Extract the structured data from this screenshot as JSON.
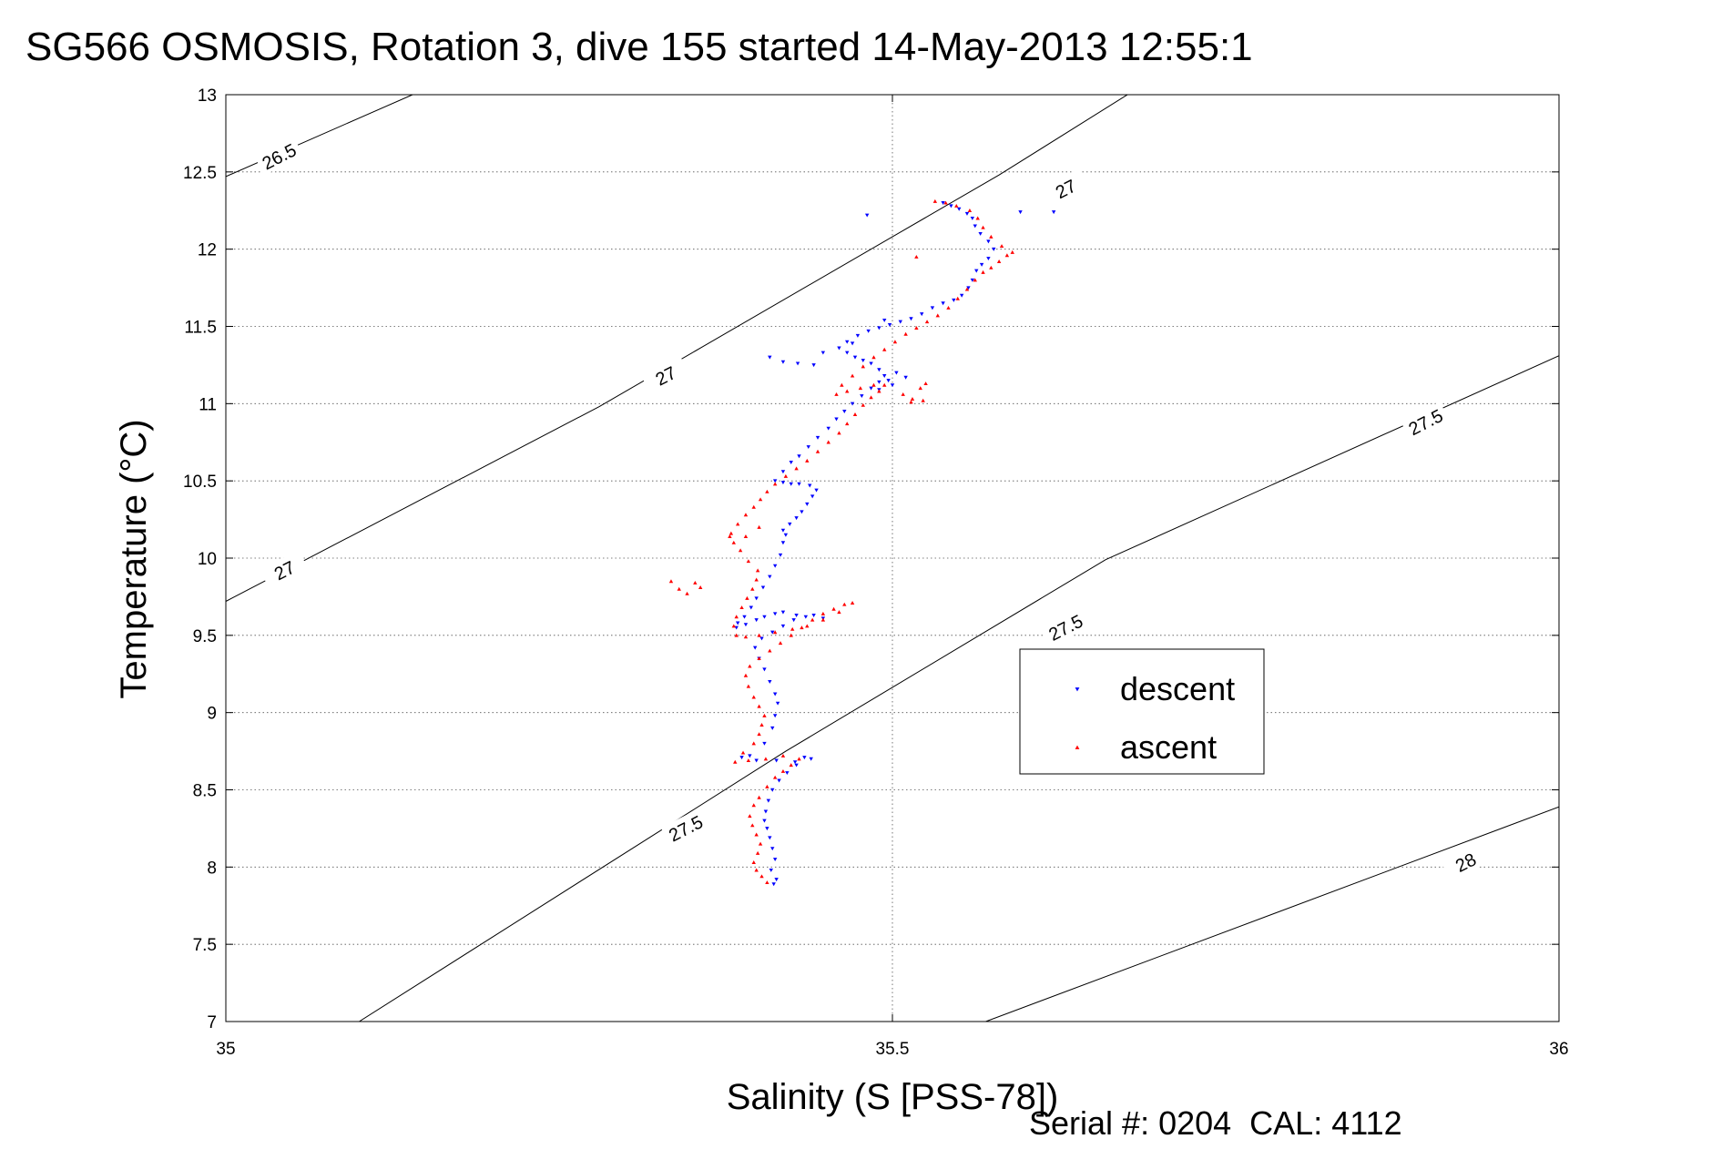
{
  "chart_data": {
    "type": "scatter",
    "title": "SG566 OSMOSIS, Rotation 3, dive 155 started 14-May-2013 12:55:1",
    "xlabel": "Salinity (S [PSS-78])",
    "ylabel": "Temperature (°C)",
    "footer": "Serial #: 0204  CAL: 4112",
    "xlim": [
      35,
      36
    ],
    "ylim": [
      7,
      13
    ],
    "xticks": [
      "35",
      "35.5",
      "36"
    ],
    "yticks": [
      "7",
      "7.5",
      "8",
      "8.5",
      "9",
      "9.5",
      "10",
      "10.5",
      "11",
      "11.5",
      "12",
      "12.5",
      "13"
    ],
    "grid": true,
    "legend_position": "right-center",
    "colors": {
      "descent": "#0000ff",
      "ascent": "#ff0000",
      "contour": "#000000"
    },
    "contours": [
      {
        "label": "26.5",
        "points": [
          [
            35.0,
            12.47
          ],
          [
            35.14,
            13.0
          ]
        ],
        "label_at": [
          35.04,
          12.6
        ]
      },
      {
        "label": "27",
        "points": [
          [
            35.0,
            9.72
          ],
          [
            35.28,
            10.98
          ],
          [
            35.58,
            12.48
          ],
          [
            35.68,
            13.02
          ]
        ],
        "label_at": [
          35.044,
          9.92
        ]
      },
      {
        "label": "27",
        "points": [],
        "label_at": [
          35.33,
          11.18
        ]
      },
      {
        "label": "27",
        "points": [],
        "label_at": [
          35.63,
          12.39
        ]
      },
      {
        "label": "27.5",
        "points": [
          [
            35.1,
            7.0
          ],
          [
            35.42,
            8.75
          ],
          [
            35.66,
            9.99
          ],
          [
            36.0,
            11.31
          ]
        ],
        "label_at": [
          35.345,
          8.25
        ]
      },
      {
        "label": "27.5",
        "points": [],
        "label_at": [
          35.63,
          9.55
        ]
      },
      {
        "label": "27.5",
        "points": [],
        "label_at": [
          35.9,
          10.88
        ]
      },
      {
        "label": "28",
        "points": [
          [
            35.57,
            7.0
          ],
          [
            36.0,
            8.39
          ]
        ],
        "label_at": [
          35.93,
          8.03
        ]
      }
    ],
    "series": [
      {
        "name": "descent",
        "marker": "triangle-down",
        "points": [
          [
            35.411,
            7.89
          ],
          [
            35.413,
            7.92
          ],
          [
            35.409,
            7.98
          ],
          [
            35.412,
            8.05
          ],
          [
            35.41,
            8.12
          ],
          [
            35.408,
            8.19
          ],
          [
            35.406,
            8.25
          ],
          [
            35.404,
            8.3
          ],
          [
            35.405,
            8.36
          ],
          [
            35.407,
            8.43
          ],
          [
            35.41,
            8.5
          ],
          [
            35.415,
            8.56
          ],
          [
            35.421,
            8.61
          ],
          [
            35.428,
            8.66
          ],
          [
            35.434,
            8.71
          ],
          [
            35.439,
            8.7
          ],
          [
            35.427,
            8.68
          ],
          [
            35.413,
            8.69
          ],
          [
            35.398,
            8.69
          ],
          [
            35.387,
            8.71
          ],
          [
            35.393,
            8.72
          ],
          [
            35.404,
            8.8
          ],
          [
            35.41,
            8.9
          ],
          [
            35.412,
            8.98
          ],
          [
            35.414,
            9.06
          ],
          [
            35.412,
            9.12
          ],
          [
            35.408,
            9.2
          ],
          [
            35.404,
            9.28
          ],
          [
            35.4,
            9.35
          ],
          [
            35.397,
            9.42
          ],
          [
            35.402,
            9.48
          ],
          [
            35.41,
            9.52
          ],
          [
            35.418,
            9.56
          ],
          [
            35.426,
            9.6
          ],
          [
            35.435,
            9.62
          ],
          [
            35.441,
            9.63
          ],
          [
            35.448,
            9.61
          ],
          [
            35.428,
            9.63
          ],
          [
            35.418,
            9.65
          ],
          [
            35.412,
            9.64
          ],
          [
            35.404,
            9.62
          ],
          [
            35.398,
            9.6
          ],
          [
            35.39,
            9.57
          ],
          [
            35.383,
            9.55
          ],
          [
            35.384,
            9.58
          ],
          [
            35.389,
            9.62
          ],
          [
            35.394,
            9.68
          ],
          [
            35.398,
            9.74
          ],
          [
            35.403,
            9.81
          ],
          [
            35.408,
            9.88
          ],
          [
            35.412,
            9.95
          ],
          [
            35.416,
            10.02
          ],
          [
            35.418,
            10.1
          ],
          [
            35.42,
            10.15
          ],
          [
            35.418,
            10.18
          ],
          [
            35.423,
            10.22
          ],
          [
            35.428,
            10.26
          ],
          [
            35.432,
            10.3
          ],
          [
            35.436,
            10.35
          ],
          [
            35.44,
            10.4
          ],
          [
            35.443,
            10.44
          ],
          [
            35.438,
            10.47
          ],
          [
            35.43,
            10.48
          ],
          [
            35.424,
            10.48
          ],
          [
            35.418,
            10.49
          ],
          [
            35.412,
            10.5
          ],
          [
            35.418,
            10.56
          ],
          [
            35.424,
            10.62
          ],
          [
            35.43,
            10.66
          ],
          [
            35.437,
            10.72
          ],
          [
            35.444,
            10.78
          ],
          [
            35.452,
            10.84
          ],
          [
            35.458,
            10.9
          ],
          [
            35.464,
            10.95
          ],
          [
            35.47,
            11.0
          ],
          [
            35.477,
            11.05
          ],
          [
            35.484,
            11.1
          ],
          [
            35.49,
            11.14
          ],
          [
            35.494,
            11.18
          ],
          [
            35.49,
            11.22
          ],
          [
            35.484,
            11.26
          ],
          [
            35.478,
            11.28
          ],
          [
            35.472,
            11.3
          ],
          [
            35.466,
            11.33
          ],
          [
            35.46,
            11.36
          ],
          [
            35.466,
            11.4
          ],
          [
            35.474,
            11.44
          ],
          [
            35.482,
            11.47
          ],
          [
            35.49,
            11.49
          ],
          [
            35.498,
            11.51
          ],
          [
            35.506,
            11.53
          ],
          [
            35.514,
            11.55
          ],
          [
            35.522,
            11.58
          ],
          [
            35.53,
            11.62
          ],
          [
            35.538,
            11.65
          ],
          [
            35.546,
            11.67
          ],
          [
            35.552,
            11.7
          ],
          [
            35.557,
            11.75
          ],
          [
            35.56,
            11.8
          ],
          [
            35.563,
            11.86
          ],
          [
            35.567,
            11.9
          ],
          [
            35.572,
            11.94
          ],
          [
            35.576,
            12.0
          ],
          [
            35.572,
            12.05
          ],
          [
            35.566,
            12.1
          ],
          [
            35.562,
            12.15
          ],
          [
            35.56,
            12.2
          ],
          [
            35.556,
            12.23
          ],
          [
            35.55,
            12.26
          ],
          [
            35.544,
            12.28
          ],
          [
            35.538,
            12.3
          ],
          [
            35.596,
            12.24
          ],
          [
            35.621,
            12.24
          ],
          [
            35.481,
            12.22
          ],
          [
            35.408,
            11.3
          ],
          [
            35.418,
            11.27
          ],
          [
            35.429,
            11.26
          ],
          [
            35.441,
            11.25
          ],
          [
            35.448,
            11.33
          ],
          [
            35.49,
            11.09
          ],
          [
            35.497,
            11.15
          ],
          [
            35.503,
            11.2
          ],
          [
            35.51,
            11.17
          ],
          [
            35.5,
            11.12
          ],
          [
            35.47,
            11.39
          ],
          [
            35.494,
            11.54
          ]
        ]
      },
      {
        "name": "ascent",
        "marker": "triangle-up",
        "points": [
          [
            35.406,
            7.9
          ],
          [
            35.402,
            7.94
          ],
          [
            35.398,
            7.98
          ],
          [
            35.396,
            8.03
          ],
          [
            35.399,
            8.09
          ],
          [
            35.401,
            8.15
          ],
          [
            35.398,
            8.21
          ],
          [
            35.395,
            8.27
          ],
          [
            35.393,
            8.33
          ],
          [
            35.396,
            8.4
          ],
          [
            35.4,
            8.45
          ],
          [
            35.406,
            8.52
          ],
          [
            35.412,
            8.58
          ],
          [
            35.418,
            8.62
          ],
          [
            35.424,
            8.66
          ],
          [
            35.43,
            8.7
          ],
          [
            35.418,
            8.72
          ],
          [
            35.405,
            8.7
          ],
          [
            35.392,
            8.69
          ],
          [
            35.382,
            8.68
          ],
          [
            35.388,
            8.74
          ],
          [
            35.396,
            8.8
          ],
          [
            35.4,
            8.86
          ],
          [
            35.402,
            8.92
          ],
          [
            35.404,
            8.98
          ],
          [
            35.4,
            9.04
          ],
          [
            35.396,
            9.1
          ],
          [
            35.392,
            9.17
          ],
          [
            35.39,
            9.24
          ],
          [
            35.393,
            9.3
          ],
          [
            35.4,
            9.35
          ],
          [
            35.408,
            9.4
          ],
          [
            35.416,
            9.45
          ],
          [
            35.424,
            9.5
          ],
          [
            35.432,
            9.55
          ],
          [
            35.44,
            9.6
          ],
          [
            35.448,
            9.64
          ],
          [
            35.456,
            9.67
          ],
          [
            35.464,
            9.7
          ],
          [
            35.47,
            9.71
          ],
          [
            35.46,
            9.65
          ],
          [
            35.448,
            9.6
          ],
          [
            35.436,
            9.56
          ],
          [
            35.425,
            9.54
          ],
          [
            35.412,
            9.52
          ],
          [
            35.4,
            9.5
          ],
          [
            35.39,
            9.49
          ],
          [
            35.383,
            9.5
          ],
          [
            35.381,
            9.56
          ],
          [
            35.383,
            9.62
          ],
          [
            35.387,
            9.68
          ],
          [
            35.391,
            9.74
          ],
          [
            35.395,
            9.8
          ],
          [
            35.398,
            9.86
          ],
          [
            35.399,
            9.92
          ],
          [
            35.392,
            9.98
          ],
          [
            35.386,
            10.05
          ],
          [
            35.381,
            10.1
          ],
          [
            35.379,
            10.16
          ],
          [
            35.384,
            10.22
          ],
          [
            35.39,
            10.28
          ],
          [
            35.396,
            10.33
          ],
          [
            35.401,
            10.38
          ],
          [
            35.406,
            10.43
          ],
          [
            35.412,
            10.48
          ],
          [
            35.42,
            10.53
          ],
          [
            35.428,
            10.58
          ],
          [
            35.436,
            10.63
          ],
          [
            35.444,
            10.69
          ],
          [
            35.452,
            10.75
          ],
          [
            35.46,
            10.81
          ],
          [
            35.466,
            10.87
          ],
          [
            35.472,
            10.93
          ],
          [
            35.478,
            10.99
          ],
          [
            35.484,
            11.04
          ],
          [
            35.49,
            11.08
          ],
          [
            35.494,
            11.12
          ],
          [
            35.486,
            11.12
          ],
          [
            35.476,
            11.1
          ],
          [
            35.466,
            11.08
          ],
          [
            35.458,
            11.06
          ],
          [
            35.462,
            11.12
          ],
          [
            35.47,
            11.18
          ],
          [
            35.478,
            11.24
          ],
          [
            35.486,
            11.3
          ],
          [
            35.494,
            11.35
          ],
          [
            35.502,
            11.4
          ],
          [
            35.51,
            11.45
          ],
          [
            35.518,
            11.49
          ],
          [
            35.526,
            11.53
          ],
          [
            35.534,
            11.57
          ],
          [
            35.542,
            11.62
          ],
          [
            35.549,
            11.68
          ],
          [
            35.556,
            11.74
          ],
          [
            35.562,
            11.8
          ],
          [
            35.568,
            11.85
          ],
          [
            35.574,
            11.88
          ],
          [
            35.58,
            11.92
          ],
          [
            35.586,
            11.96
          ],
          [
            35.59,
            11.98
          ],
          [
            35.582,
            12.02
          ],
          [
            35.574,
            12.08
          ],
          [
            35.568,
            12.14
          ],
          [
            35.564,
            12.2
          ],
          [
            35.558,
            12.25
          ],
          [
            35.548,
            12.28
          ],
          [
            35.54,
            12.3
          ],
          [
            35.532,
            12.31
          ],
          [
            35.508,
            11.06
          ],
          [
            35.515,
            11.03
          ],
          [
            35.523,
            11.02
          ],
          [
            35.514,
            11.01
          ],
          [
            35.521,
            11.1
          ],
          [
            35.525,
            11.13
          ],
          [
            35.34,
            9.8
          ],
          [
            35.334,
            9.85
          ],
          [
            35.346,
            9.77
          ],
          [
            35.352,
            9.84
          ],
          [
            35.356,
            9.81
          ],
          [
            35.378,
            10.14
          ],
          [
            35.39,
            10.14
          ],
          [
            35.4,
            10.2
          ],
          [
            35.518,
            11.95
          ]
        ]
      }
    ]
  }
}
